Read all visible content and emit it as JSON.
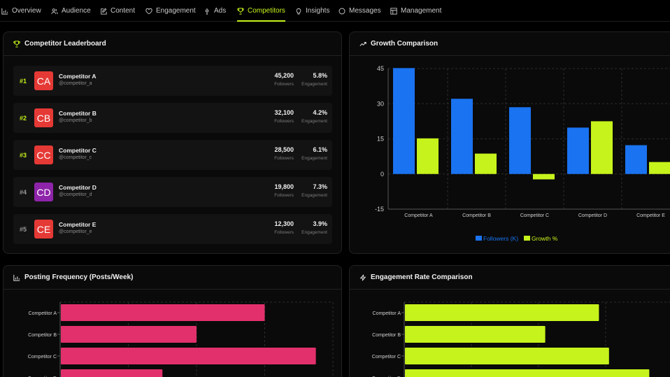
{
  "nav": [
    {
      "id": "overview",
      "label": "Overview",
      "icon": "bar-chart-icon",
      "active": false
    },
    {
      "id": "audience",
      "label": "Audience",
      "icon": "users-icon",
      "active": false
    },
    {
      "id": "content",
      "label": "Content",
      "icon": "edit-icon",
      "active": false
    },
    {
      "id": "engagement",
      "label": "Engagement",
      "icon": "heart-icon",
      "active": false
    },
    {
      "id": "ads",
      "label": "Ads",
      "icon": "megaphone-icon",
      "active": false
    },
    {
      "id": "competitors",
      "label": "Competitors",
      "icon": "trophy-icon",
      "active": true
    },
    {
      "id": "insights",
      "label": "Insights",
      "icon": "lightbulb-icon",
      "active": false
    },
    {
      "id": "messages",
      "label": "Messages",
      "icon": "message-icon",
      "active": false
    },
    {
      "id": "management",
      "label": "Management",
      "icon": "grid-icon",
      "active": false
    }
  ],
  "colors": {
    "accent": "#c6f31b",
    "blue": "#1a73f0",
    "pink": "#e2306c",
    "red": "#e53935",
    "purple": "#8e24aa"
  },
  "leaderboard": {
    "title": "Competitor Leaderboard",
    "icon": "trophy-icon",
    "followers_label": "Followers",
    "engagement_label": "Engagement",
    "rows": [
      {
        "rank": "#1",
        "initials": "CA",
        "name": "Competitor A",
        "handle": "@competitor_a",
        "followers": "45,200",
        "engagement": "5.8%",
        "avatar_color": "#e53935",
        "rank_color": "#c6f31b"
      },
      {
        "rank": "#2",
        "initials": "CB",
        "name": "Competitor B",
        "handle": "@competitor_b",
        "followers": "32,100",
        "engagement": "4.2%",
        "avatar_color": "#e53935",
        "rank_color": "#c6f31b"
      },
      {
        "rank": "#3",
        "initials": "CC",
        "name": "Competitor C",
        "handle": "@competitor_c",
        "followers": "28,500",
        "engagement": "6.1%",
        "avatar_color": "#e53935",
        "rank_color": "#c6f31b"
      },
      {
        "rank": "#4",
        "initials": "CD",
        "name": "Competitor D",
        "handle": "@competitor_d",
        "followers": "19,800",
        "engagement": "7.3%",
        "avatar_color": "#8e24aa",
        "rank_color": "#9a9a9a"
      },
      {
        "rank": "#5",
        "initials": "CE",
        "name": "Competitor E",
        "handle": "@competitor_e",
        "followers": "12,300",
        "engagement": "3.9%",
        "avatar_color": "#e53935",
        "rank_color": "#9a9a9a"
      }
    ]
  },
  "growth": {
    "title": "Growth Comparison",
    "icon": "trending-up-icon"
  },
  "posting": {
    "title": "Posting Frequency (Posts/Week)",
    "icon": "bar-chart-icon"
  },
  "engagement_rate": {
    "title": "Engagement Rate Comparison",
    "icon": "lightning-icon"
  },
  "chart_data": [
    {
      "type": "bar",
      "title": "Growth Comparison",
      "categories": [
        "Competitor A",
        "Competitor B",
        "Competitor C",
        "Competitor D",
        "Competitor E"
      ],
      "series": [
        {
          "name": "Followers (K)",
          "color": "#1a73f0",
          "values": [
            45.2,
            32.1,
            28.5,
            19.8,
            12.3
          ]
        },
        {
          "name": "Growth %",
          "color": "#c6f31b",
          "values": [
            15.2,
            8.7,
            -2.3,
            22.5,
            5.1
          ]
        }
      ],
      "ylim": [
        -15,
        45
      ],
      "yticks": [
        -15,
        0,
        15,
        30,
        45
      ],
      "grid": true,
      "legend": "bottom"
    },
    {
      "type": "bar",
      "orientation": "horizontal",
      "title": "Posting Frequency (Posts/Week)",
      "categories": [
        "Competitor A",
        "Competitor B",
        "Competitor C",
        "Competitor D"
      ],
      "series": [
        {
          "color": "#e2306c",
          "values": [
            12,
            8,
            15,
            6
          ]
        }
      ],
      "xlim": [
        0,
        16
      ],
      "grid": true
    },
    {
      "type": "bar",
      "orientation": "horizontal",
      "title": "Engagement Rate Comparison",
      "categories": [
        "Competitor A",
        "Competitor B",
        "Competitor C",
        "Competitor D"
      ],
      "series": [
        {
          "color": "#c6f31b",
          "values": [
            5.8,
            4.2,
            6.1,
            7.3
          ]
        }
      ],
      "xlim": [
        0,
        8
      ],
      "grid": true
    }
  ]
}
